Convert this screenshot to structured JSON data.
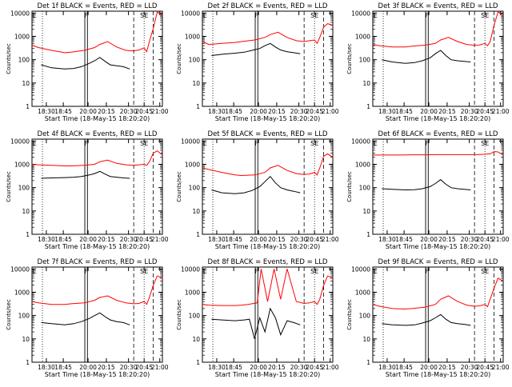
{
  "chart_data": [
    {
      "type": "line",
      "title": "Det 1f BLACK = Events, RED = LLD",
      "detector": "1f",
      "xlabel": "Start Time (18-May-15 18:20:20)",
      "ylabel": "Counts/sec",
      "x_ticks": [
        "18:30",
        "18:45",
        "20:00",
        "20:15",
        "20:30",
        "20:45",
        "21:00"
      ],
      "y_ticks": [
        "1",
        "10",
        "100",
        "1000",
        "10000"
      ],
      "ylim": [
        1,
        12000
      ],
      "y_scale": "log",
      "markers": [
        "E",
        "F",
        "SE"
      ],
      "series": [
        {
          "color": "#ff0000",
          "x": [
            0,
            0.05,
            0.15,
            0.25,
            0.3,
            0.4,
            0.48,
            0.52,
            0.58,
            0.65,
            0.72,
            0.78,
            0.82,
            0.86,
            0.88,
            0.9,
            0.93,
            0.96,
            1
          ],
          "y": [
            420,
            330,
            250,
            200,
            210,
            250,
            330,
            450,
            600,
            350,
            250,
            240,
            260,
            320,
            220,
            600,
            2200,
            11000,
            8000
          ]
        },
        {
          "color": "#000000",
          "x": [
            0.07,
            0.15,
            0.25,
            0.32,
            0.38,
            0.44,
            0.48,
            0.52,
            0.56,
            0.6,
            0.65,
            0.7,
            0.75
          ],
          "y": [
            60,
            45,
            40,
            42,
            50,
            70,
            90,
            125,
            85,
            60,
            55,
            50,
            40
          ]
        }
      ]
    },
    {
      "type": "line",
      "title": "Det 2f BLACK = Events, RED = LLD",
      "detector": "2f",
      "xlabel": "Start Time (18-May-15 18:20:20)",
      "ylabel": "Counts/sec",
      "x_ticks": [
        "18:30",
        "18:45",
        "20:00",
        "20:15",
        "20:30",
        "20:45",
        "21:00"
      ],
      "y_ticks": [
        "1",
        "10",
        "100",
        "1000",
        "10000"
      ],
      "ylim": [
        1,
        12000
      ],
      "y_scale": "log",
      "markers": [
        "E",
        "F",
        "SE"
      ],
      "series": [
        {
          "color": "#ff0000",
          "x": [
            0,
            0.05,
            0.15,
            0.25,
            0.3,
            0.4,
            0.48,
            0.52,
            0.58,
            0.65,
            0.72,
            0.78,
            0.82,
            0.86,
            0.88,
            0.9,
            0.93,
            0.96,
            1
          ],
          "y": [
            600,
            450,
            500,
            550,
            600,
            700,
            900,
            1200,
            1500,
            900,
            650,
            600,
            650,
            700,
            500,
            900,
            2500,
            3500,
            3000
          ]
        },
        {
          "color": "#000000",
          "x": [
            0.07,
            0.15,
            0.25,
            0.32,
            0.38,
            0.44,
            0.48,
            0.52,
            0.56,
            0.6,
            0.65,
            0.7,
            0.75
          ],
          "y": [
            150,
            170,
            190,
            210,
            250,
            300,
            400,
            500,
            350,
            260,
            220,
            200,
            180
          ]
        }
      ]
    },
    {
      "type": "line",
      "title": "Det 3f BLACK = Events, RED = LLD",
      "detector": "3f",
      "xlabel": "Start Time (18-May-15 18:20:20)",
      "ylabel": "Counts/sec",
      "x_ticks": [
        "18:30",
        "18:45",
        "20:00",
        "20:15",
        "20:30",
        "20:45",
        "21:00"
      ],
      "y_ticks": [
        "1",
        "10",
        "100",
        "1000",
        "10000"
      ],
      "ylim": [
        1,
        12000
      ],
      "y_scale": "log",
      "markers": [
        "E",
        "F",
        "SE"
      ],
      "series": [
        {
          "color": "#ff0000",
          "x": [
            0,
            0.05,
            0.15,
            0.25,
            0.3,
            0.4,
            0.48,
            0.52,
            0.58,
            0.65,
            0.72,
            0.78,
            0.82,
            0.86,
            0.88,
            0.9,
            0.93,
            0.96,
            1
          ],
          "y": [
            450,
            400,
            350,
            350,
            380,
            420,
            500,
            700,
            900,
            600,
            450,
            420,
            430,
            500,
            400,
            600,
            3000,
            11000,
            9000
          ]
        },
        {
          "color": "#000000",
          "x": [
            0.07,
            0.15,
            0.25,
            0.32,
            0.38,
            0.44,
            0.48,
            0.52,
            0.56,
            0.6,
            0.65,
            0.7,
            0.75
          ],
          "y": [
            100,
            80,
            70,
            75,
            90,
            120,
            180,
            250,
            150,
            100,
            90,
            85,
            80
          ]
        }
      ]
    },
    {
      "type": "line",
      "title": "Det 4f BLACK = Events, RED = LLD",
      "detector": "4f",
      "xlabel": "Start Time (18-May-15 18:20:20)",
      "ylabel": "Counts/sec",
      "x_ticks": [
        "18:30",
        "18:45",
        "20:00",
        "20:15",
        "20:30",
        "20:45",
        "21:00"
      ],
      "y_ticks": [
        "1",
        "10",
        "100",
        "1000",
        "10000"
      ],
      "ylim": [
        1,
        12000
      ],
      "y_scale": "log",
      "markers": [
        "E",
        "F",
        "SE"
      ],
      "series": [
        {
          "color": "#ff0000",
          "x": [
            0,
            0.05,
            0.15,
            0.25,
            0.3,
            0.4,
            0.48,
            0.52,
            0.58,
            0.65,
            0.72,
            0.78,
            0.82,
            0.86,
            0.88,
            0.9,
            0.93,
            0.96,
            1
          ],
          "y": [
            1000,
            950,
            900,
            850,
            850,
            900,
            1000,
            1300,
            1500,
            1100,
            950,
            900,
            950,
            1000,
            900,
            1300,
            3000,
            3800,
            2500
          ]
        },
        {
          "color": "#000000",
          "x": [
            0.07,
            0.15,
            0.25,
            0.32,
            0.38,
            0.44,
            0.48,
            0.52,
            0.56,
            0.6,
            0.65,
            0.7,
            0.75
          ],
          "y": [
            250,
            260,
            270,
            280,
            300,
            350,
            400,
            500,
            380,
            300,
            280,
            260,
            250
          ]
        }
      ]
    },
    {
      "type": "line",
      "title": "Det 5f BLACK = Events, RED = LLD",
      "detector": "5f",
      "xlabel": "Start Time (18-May-15 18:20:20)",
      "ylabel": "Counts/sec",
      "x_ticks": [
        "18:30",
        "18:45",
        "20:00",
        "20:15",
        "20:30",
        "20:45",
        "21:00"
      ],
      "y_ticks": [
        "1",
        "10",
        "100",
        "1000",
        "10000"
      ],
      "ylim": [
        1,
        12000
      ],
      "y_scale": "log",
      "markers": [
        "E",
        "F",
        "SE"
      ],
      "series": [
        {
          "color": "#ff0000",
          "x": [
            0,
            0.05,
            0.15,
            0.25,
            0.3,
            0.4,
            0.48,
            0.52,
            0.58,
            0.65,
            0.72,
            0.78,
            0.82,
            0.86,
            0.88,
            0.9,
            0.93,
            0.96,
            1
          ],
          "y": [
            700,
            600,
            450,
            350,
            330,
            350,
            450,
            700,
            900,
            550,
            400,
            370,
            380,
            450,
            350,
            700,
            2200,
            2800,
            2000
          ]
        },
        {
          "color": "#000000",
          "x": [
            0.07,
            0.15,
            0.25,
            0.32,
            0.38,
            0.44,
            0.48,
            0.52,
            0.56,
            0.6,
            0.65,
            0.7,
            0.75
          ],
          "y": [
            80,
            60,
            55,
            60,
            75,
            110,
            180,
            300,
            160,
            100,
            80,
            70,
            60
          ]
        }
      ]
    },
    {
      "type": "line",
      "title": "Det 6f BLACK = Events, RED = LLD",
      "detector": "6f",
      "xlabel": "Start Time (18-May-15 18:20:20)",
      "ylabel": "Counts/sec",
      "x_ticks": [
        "18:30",
        "18:45",
        "20:00",
        "20:15",
        "20:30",
        "20:45",
        "21:00"
      ],
      "y_ticks": [
        "1",
        "10",
        "100",
        "1000",
        "10000"
      ],
      "ylim": [
        1,
        12000
      ],
      "y_scale": "log",
      "markers": [
        "E",
        "F",
        "SE"
      ],
      "series": [
        {
          "color": "#ff0000",
          "x": [
            0,
            0.1,
            0.2,
            0.3,
            0.4,
            0.5,
            0.6,
            0.7,
            0.8,
            0.86,
            0.9,
            0.93,
            0.96,
            1
          ],
          "y": [
            2500,
            2500,
            2500,
            2550,
            2550,
            2600,
            2600,
            2600,
            2600,
            2700,
            2800,
            3500,
            3400,
            2500
          ]
        },
        {
          "color": "#000000",
          "x": [
            0.07,
            0.15,
            0.25,
            0.32,
            0.38,
            0.44,
            0.48,
            0.52,
            0.56,
            0.6,
            0.65,
            0.7,
            0.75
          ],
          "y": [
            90,
            85,
            80,
            82,
            90,
            110,
            150,
            220,
            140,
            100,
            90,
            85,
            80
          ]
        }
      ]
    },
    {
      "type": "line",
      "title": "Det 7f BLACK = Events, RED = LLD",
      "detector": "7f",
      "xlabel": "Start Time (18-May-15 18:20:20)",
      "ylabel": "Counts/sec",
      "x_ticks": [
        "18:30",
        "18:45",
        "20:00",
        "20:15",
        "20:30",
        "20:45",
        "21:00"
      ],
      "y_ticks": [
        "1",
        "10",
        "100",
        "1000",
        "10000"
      ],
      "ylim": [
        1,
        12000
      ],
      "y_scale": "log",
      "markers": [
        "E",
        "F",
        "SE"
      ],
      "series": [
        {
          "color": "#ff0000",
          "x": [
            0,
            0.05,
            0.15,
            0.25,
            0.3,
            0.4,
            0.48,
            0.52,
            0.58,
            0.65,
            0.72,
            0.78,
            0.82,
            0.86,
            0.88,
            0.9,
            0.93,
            0.96,
            1
          ],
          "y": [
            400,
            350,
            300,
            300,
            320,
            350,
            450,
            600,
            700,
            450,
            350,
            320,
            330,
            400,
            300,
            600,
            2000,
            5000,
            4000
          ]
        },
        {
          "color": "#000000",
          "x": [
            0.07,
            0.15,
            0.25,
            0.32,
            0.38,
            0.44,
            0.48,
            0.52,
            0.56,
            0.6,
            0.65,
            0.7,
            0.75
          ],
          "y": [
            50,
            45,
            40,
            45,
            55,
            75,
            100,
            130,
            90,
            65,
            55,
            50,
            40
          ]
        }
      ]
    },
    {
      "type": "line",
      "title": "Det 8f BLACK = Events, RED = LLD",
      "detector": "8f",
      "xlabel": "Start Time (18-May-15 18:20:20)",
      "ylabel": "Counts/sec",
      "x_ticks": [
        "18:30",
        "18:45",
        "20:00",
        "20:15",
        "20:30",
        "20:45",
        "21:00"
      ],
      "y_ticks": [
        "1",
        "10",
        "100",
        "1000",
        "10000"
      ],
      "ylim": [
        1,
        12000
      ],
      "y_scale": "log",
      "markers": [
        "E",
        "F",
        "SE"
      ],
      "series": [
        {
          "color": "#ff0000",
          "x": [
            0,
            0.05,
            0.15,
            0.25,
            0.3,
            0.35,
            0.38,
            0.42,
            0.45,
            0.5,
            0.55,
            0.6,
            0.65,
            0.72,
            0.78,
            0.82,
            0.86,
            0.88,
            0.9,
            0.93,
            0.96,
            1
          ],
          "y": [
            300,
            280,
            270,
            270,
            280,
            300,
            320,
            350,
            10000,
            400,
            10000,
            500,
            10000,
            400,
            330,
            350,
            400,
            300,
            500,
            2000,
            5000,
            4000
          ]
        },
        {
          "color": "#000000",
          "x": [
            0.07,
            0.15,
            0.25,
            0.32,
            0.36,
            0.4,
            0.44,
            0.48,
            0.52,
            0.56,
            0.6,
            0.65,
            0.7,
            0.75
          ],
          "y": [
            70,
            65,
            60,
            65,
            70,
            10,
            80,
            20,
            200,
            80,
            15,
            60,
            50,
            40
          ]
        }
      ]
    },
    {
      "type": "line",
      "title": "Det 9f BLACK = Events, RED = LLD",
      "detector": "9f",
      "xlabel": "Start Time (18-May-15 18:20:20)",
      "ylabel": "Counts/sec",
      "x_ticks": [
        "18:30",
        "18:45",
        "20:00",
        "20:15",
        "20:30",
        "20:45",
        "21:00"
      ],
      "y_ticks": [
        "1",
        "10",
        "100",
        "1000",
        "10000"
      ],
      "ylim": [
        1,
        12000
      ],
      "y_scale": "log",
      "markers": [
        "E",
        "F",
        "SE"
      ],
      "series": [
        {
          "color": "#ff0000",
          "x": [
            0,
            0.05,
            0.15,
            0.25,
            0.3,
            0.4,
            0.48,
            0.52,
            0.58,
            0.65,
            0.72,
            0.78,
            0.82,
            0.86,
            0.88,
            0.9,
            0.93,
            0.96,
            1
          ],
          "y": [
            300,
            250,
            200,
            190,
            200,
            230,
            300,
            500,
            700,
            400,
            280,
            250,
            260,
            300,
            240,
            500,
            1500,
            4000,
            3000
          ]
        },
        {
          "color": "#000000",
          "x": [
            0.07,
            0.15,
            0.25,
            0.32,
            0.38,
            0.44,
            0.48,
            0.52,
            0.56,
            0.6,
            0.65,
            0.7,
            0.75
          ],
          "y": [
            45,
            40,
            38,
            40,
            48,
            60,
            80,
            110,
            70,
            50,
            45,
            42,
            38
          ]
        }
      ]
    }
  ]
}
